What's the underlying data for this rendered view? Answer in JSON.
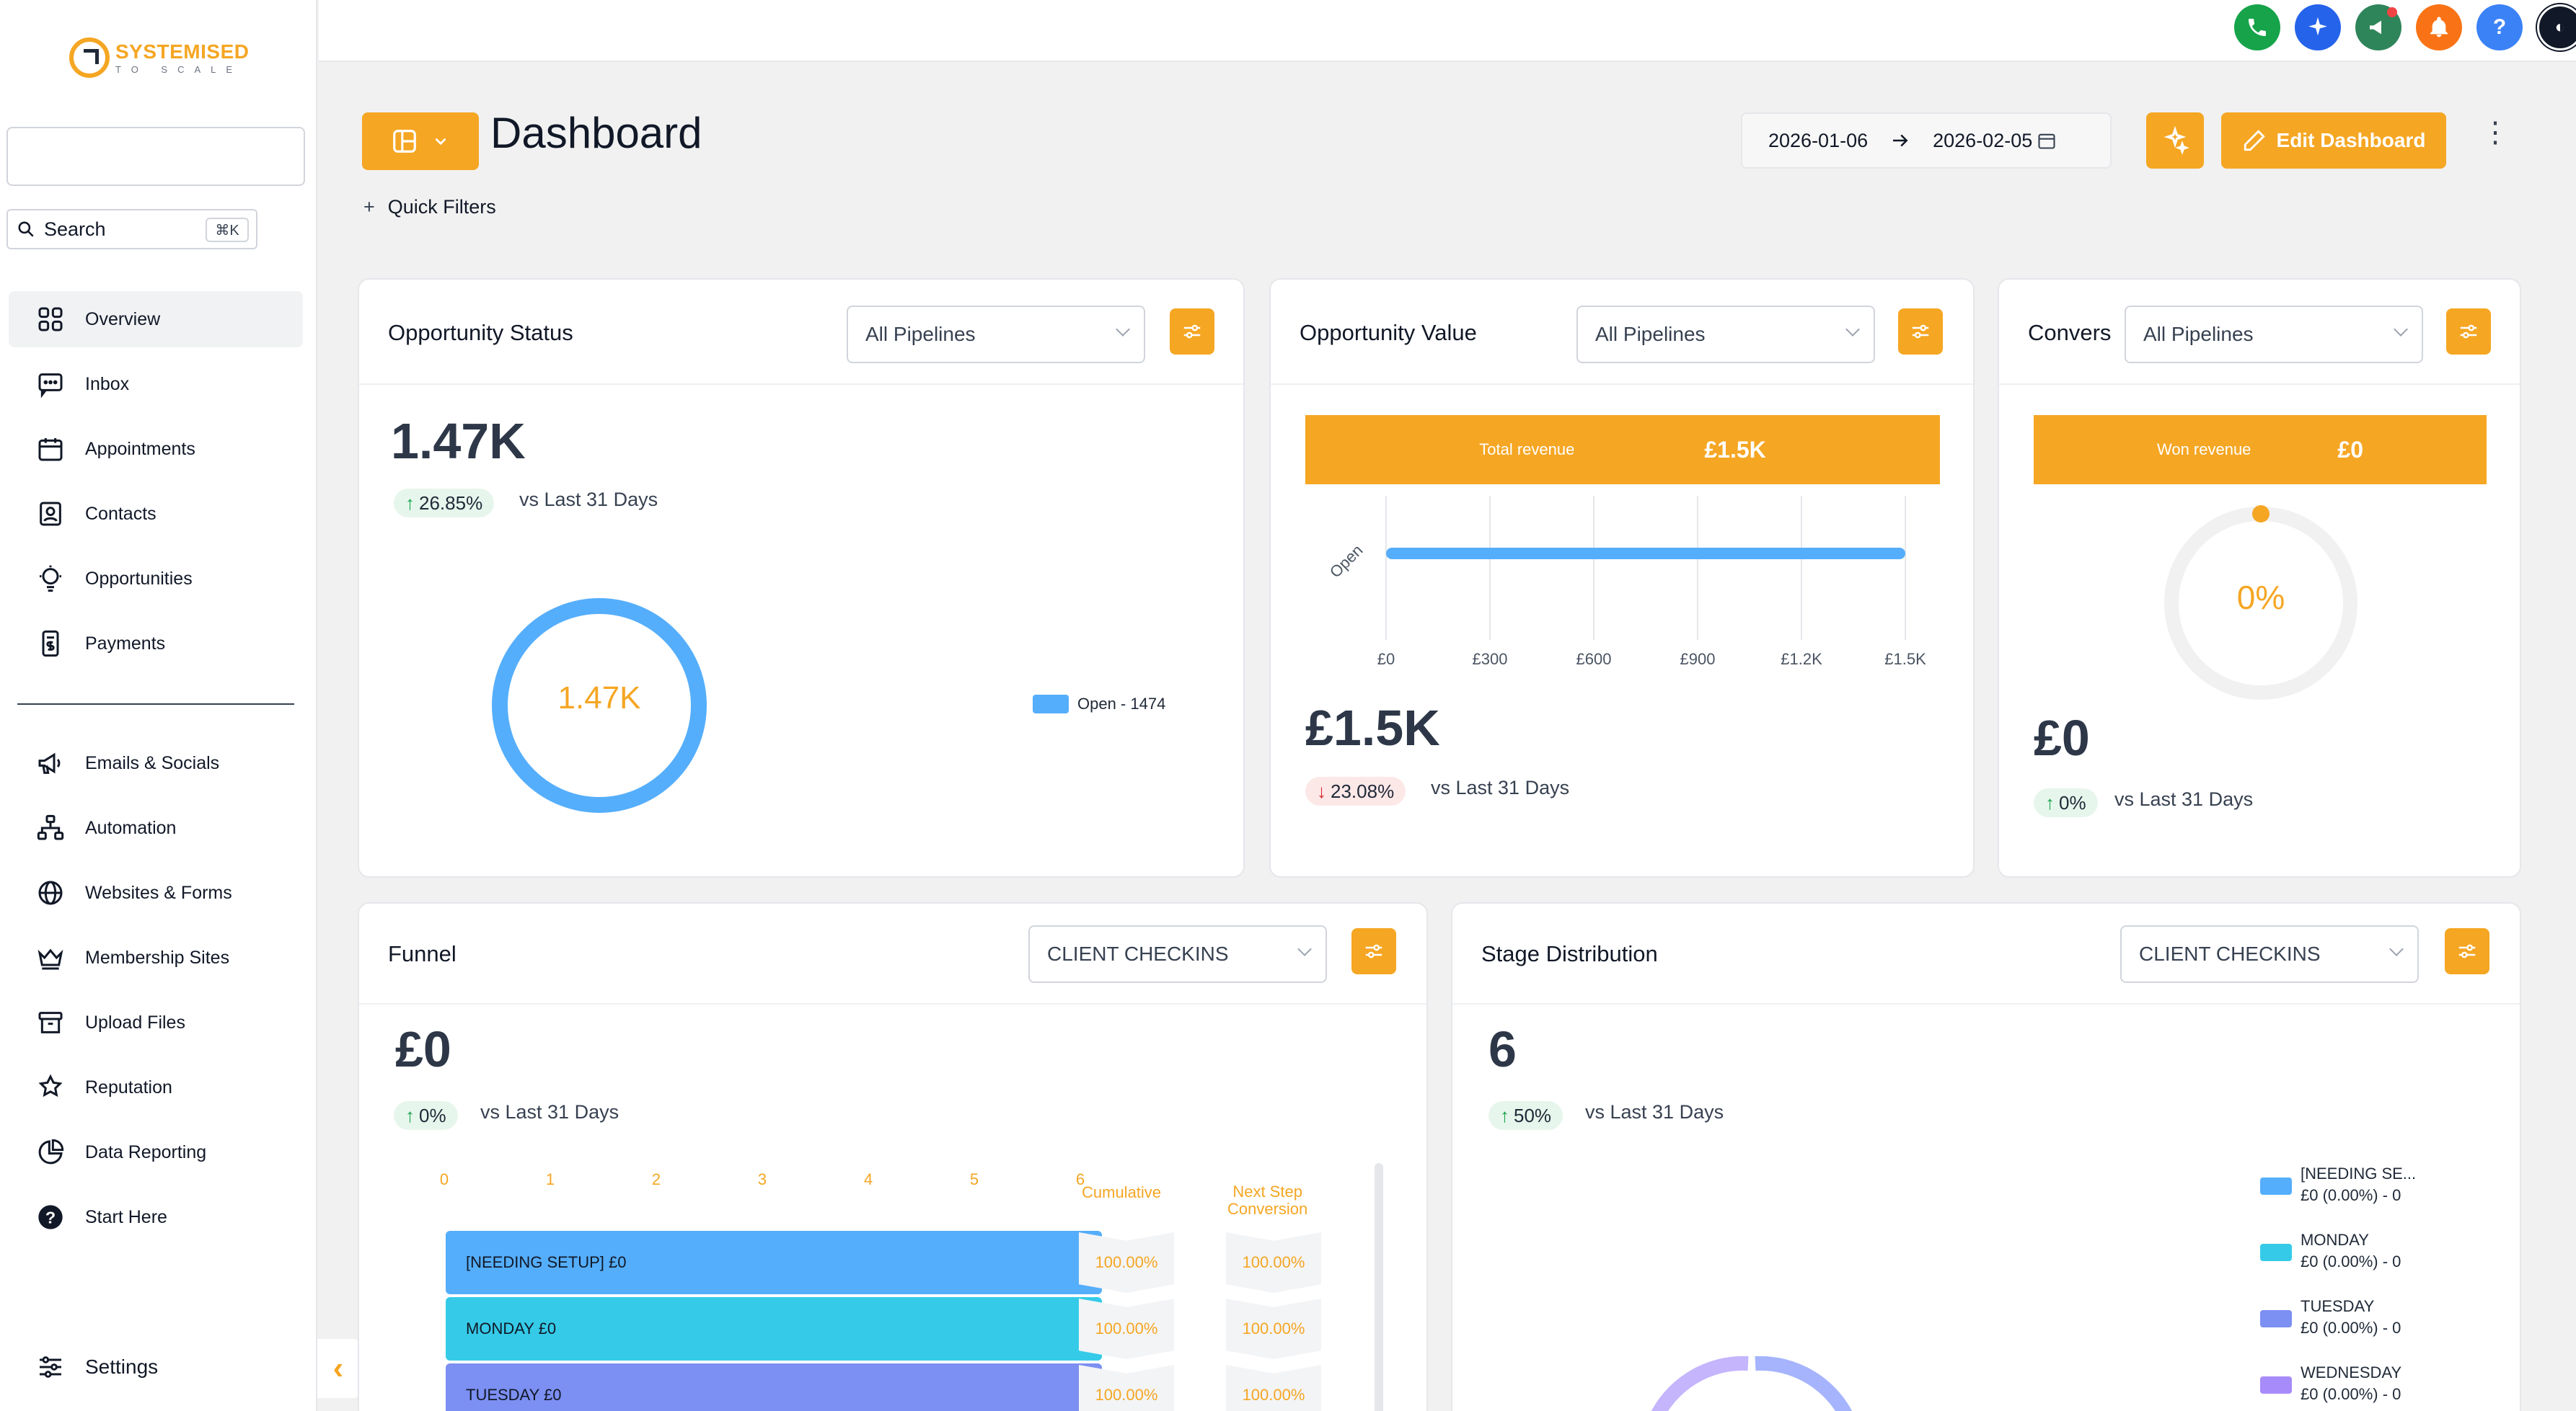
{
  "brand": {
    "name_line1": "SYSTEMISED",
    "name_line2": "TO SCALE",
    "accent": "#f5a623"
  },
  "sidebar": {
    "search_label": "Search",
    "search_shortcut": "⌘K",
    "items": [
      {
        "label": "Overview",
        "icon": "grid-icon",
        "active": true
      },
      {
        "label": "Inbox",
        "icon": "chat-icon"
      },
      {
        "label": "Appointments",
        "icon": "calendar-icon"
      },
      {
        "label": "Contacts",
        "icon": "contact-card-icon"
      },
      {
        "label": "Opportunities",
        "icon": "lightbulb-icon"
      },
      {
        "label": "Payments",
        "icon": "receipt-icon"
      }
    ],
    "items2": [
      {
        "label": "Emails & Socials",
        "icon": "megaphone-icon"
      },
      {
        "label": "Automation",
        "icon": "workflow-icon"
      },
      {
        "label": "Websites & Forms",
        "icon": "globe-icon"
      },
      {
        "label": "Membership Sites",
        "icon": "crown-icon"
      },
      {
        "label": "Upload Files",
        "icon": "archive-icon"
      },
      {
        "label": "Reputation",
        "icon": "star-badge-icon"
      },
      {
        "label": "Data Reporting",
        "icon": "pie-chart-icon"
      },
      {
        "label": "Start Here",
        "icon": "help-circle-icon"
      }
    ],
    "settings_label": "Settings"
  },
  "topbar": {
    "buttons": [
      {
        "name": "phone-icon",
        "color": "#16a34a"
      },
      {
        "name": "ai-sparkle-icon",
        "color": "#2563eb"
      },
      {
        "name": "megaphone-icon",
        "color": "#2f855a"
      },
      {
        "name": "bell-icon",
        "color": "#f97316"
      },
      {
        "name": "help-icon",
        "color": "#3b82f6"
      }
    ]
  },
  "header": {
    "title": "Dashboard",
    "quick_filters": "Quick Filters",
    "date_start": "2026-01-06",
    "date_end": "2026-02-05",
    "edit_label": "Edit Dashboard"
  },
  "cards": {
    "opp_status": {
      "title": "Opportunity Status",
      "pipeline": "All Pipelines",
      "value": "1.47K",
      "change": "26.85%",
      "vs": "vs Last 31 Days",
      "donut_center": "1.47K",
      "legend": "Open - 1474"
    },
    "opp_value": {
      "title": "Opportunity Value",
      "pipeline": "All Pipelines",
      "bar_label": "Total revenue",
      "bar_value": "£1.5K",
      "value": "£1.5K",
      "change": "23.08%",
      "vs": "vs Last 31 Days"
    },
    "conversion": {
      "title": "Convers",
      "pipeline": "All Pipelines",
      "bar_label": "Won revenue",
      "bar_value": "£0",
      "gauge_label": "0%",
      "value": "£0",
      "change": "0%",
      "vs": "vs Last 31 Days"
    },
    "funnel": {
      "title": "Funnel",
      "pipeline": "CLIENT CHECKINS",
      "value": "£0",
      "change": "0%",
      "vs": "vs Last 31 Days",
      "col_cumulative": "Cumulative",
      "col_next_line1": "Next Step",
      "col_next_line2": "Conversion"
    },
    "stage": {
      "title": "Stage Distribution",
      "pipeline": "CLIENT CHECKINS",
      "value": "6",
      "change": "50%",
      "vs": "vs Last 31 Days"
    }
  },
  "chart_data": [
    {
      "type": "pie",
      "title": "",
      "categories": [
        "Open - 1474"
      ],
      "values": [
        1474
      ],
      "colors": [
        "#55aefb"
      ]
    },
    {
      "type": "bar",
      "orientation": "horizontal",
      "categories": [
        "Open"
      ],
      "values": [
        1500
      ],
      "x_ticks": [
        "£0",
        "£300",
        "£600",
        "£900",
        "£1.2K",
        "£1.5K"
      ],
      "xlim": [
        0,
        1500
      ],
      "color": "#55aefb"
    },
    {
      "type": "bar",
      "orientation": "horizontal",
      "subtype": "funnel",
      "categories": [
        "[NEEDING SETUP]  £0",
        "MONDAY  £0",
        "TUESDAY  £0"
      ],
      "values": [
        6,
        6,
        6
      ],
      "x_ticks": [
        "0",
        "1",
        "2",
        "3",
        "4",
        "5",
        "6"
      ],
      "xlim": [
        0,
        6
      ],
      "colors": [
        "#55aefb",
        "#35cbe8",
        "#7c8ff2"
      ],
      "cumulative": [
        "100.00%",
        "100.00%",
        "100.00%"
      ],
      "next_step": [
        "100.00%",
        "100.00%",
        "100.00%"
      ]
    },
    {
      "type": "pie",
      "subtype": "donut",
      "series": [
        {
          "name": "[NEEDING SE...",
          "values": [
            "£0 (0.00%) - 0"
          ],
          "color": "#55aefb"
        },
        {
          "name": "MONDAY",
          "values": [
            "£0 (0.00%) - 0"
          ],
          "color": "#35cbe8"
        },
        {
          "name": "TUESDAY",
          "values": [
            "£0 (0.00%) - 0"
          ],
          "color": "#7c8ff2"
        },
        {
          "name": "WEDNESDAY",
          "values": [
            "£0 (0.00%) - 0"
          ],
          "color": "#a78bfa"
        }
      ]
    }
  ]
}
